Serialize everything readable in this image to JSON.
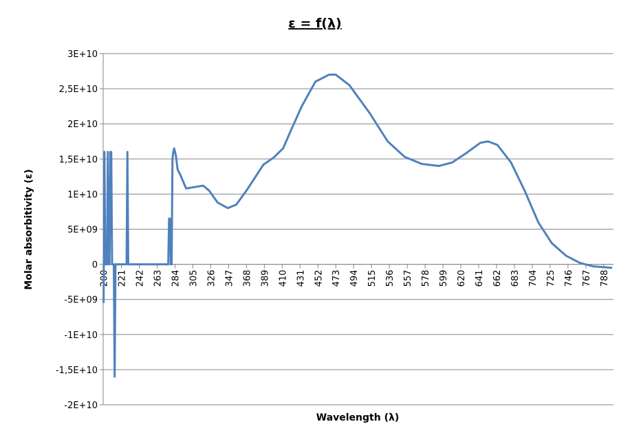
{
  "chart_data": {
    "type": "line",
    "title": "ε = f(λ)",
    "x_label": "Wavelength (λ)",
    "y_label": "Molar absorbitivity (ε)",
    "xlim": [
      199.5,
      799.5
    ],
    "xticks": [
      200,
      221,
      242,
      263,
      284,
      305,
      326,
      347,
      368,
      389,
      410,
      431,
      452,
      473,
      494,
      515,
      536,
      557,
      578,
      599,
      620,
      641,
      662,
      683,
      704,
      725,
      746,
      767,
      788
    ],
    "ylim": [
      -20000000000.0,
      30000000000.0
    ],
    "yticks": [
      {
        "value": -20000000000.0,
        "label": "-2E+10"
      },
      {
        "value": -15000000000.0,
        "label": "-1,5E+10"
      },
      {
        "value": -10000000000.0,
        "label": "-1E+10"
      },
      {
        "value": -5000000000.0,
        "label": "-5E+09"
      },
      0,
      {
        "value": 5000000000.0,
        "label": "5E+09"
      },
      {
        "value": 10000000000.0,
        "label": "1E+10"
      },
      {
        "value": 15000000000.0,
        "label": "1,5E+10"
      },
      {
        "value": 20000000000.0,
        "label": "2E+10"
      },
      {
        "value": 25000000000.0,
        "label": "2,5E+10"
      },
      {
        "value": 30000000000.0,
        "label": "3E+10"
      }
    ],
    "grid": true,
    "series": [
      {
        "color": "#4f81bd",
        "x": [
          200,
          201,
          202,
          204,
          205,
          206,
          207,
          208,
          209,
          210,
          212,
          213,
          214,
          227,
          228,
          229,
          276,
          277,
          278,
          279,
          280,
          281,
          282,
          283,
          285,
          287,
          290,
          297,
          307,
          317,
          324,
          334,
          346,
          356,
          368,
          388,
          400,
          411,
          420,
          433,
          449,
          465,
          473,
          489,
          513,
          534,
          554,
          574,
          594,
          610,
          626,
          643,
          652,
          663,
          679,
          695,
          711,
          727,
          744,
          760,
          776,
          798
        ],
        "values": [
          -5500000000.0,
          16000000000.0,
          0,
          0,
          16000000000.0,
          0,
          0,
          16000000000.0,
          16000000000.0,
          0,
          0,
          -16000000000.0,
          0,
          0,
          16000000000.0,
          0,
          0,
          6500000000.0,
          6500000000.0,
          0,
          0,
          15000000000.0,
          16000000000.0,
          16500000000.0,
          15500000000.0,
          13500000000.0,
          12800000000.0,
          10800000000.0,
          11000000000.0,
          11200000000.0,
          10500000000.0,
          8800000000.0,
          8000000000.0,
          8500000000.0,
          10500000000.0,
          14200000000.0,
          15200000000.0,
          16500000000.0,
          19000000000.0,
          22500000000.0,
          26000000000.0,
          27000000000.0,
          27000000000.0,
          25500000000.0,
          21500000000.0,
          17500000000.0,
          15300000000.0,
          14300000000.0,
          14000000000.0,
          14500000000.0,
          15800000000.0,
          17300000000.0,
          17500000000.0,
          17000000000.0,
          14500000000.0,
          10500000000.0,
          6000000000.0,
          3000000000.0,
          1200000000.0,
          200000000.0,
          -300000000.0,
          -500000000.0
        ]
      }
    ]
  }
}
